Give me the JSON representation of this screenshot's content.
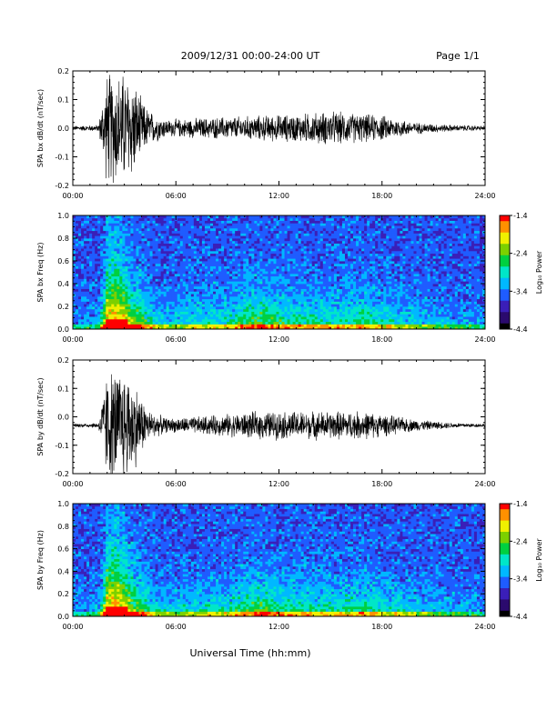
{
  "header": {
    "title": "2009/12/31  00:00-24:00 UT",
    "page": "Page 1/1"
  },
  "footer": {
    "xlabel": "Universal Time (hh:mm)"
  },
  "colorbar": {
    "ticks": [
      "-1.4",
      "-2.4",
      "-3.4",
      "-4.4"
    ],
    "label": "Log₁₀ Power",
    "colors": [
      "#000000",
      "#2b0a6e",
      "#3a1fb8",
      "#1f5cff",
      "#00b8ff",
      "#00e6c8",
      "#00d040",
      "#7cd000",
      "#f0f000",
      "#ff9000",
      "#ff0000"
    ]
  },
  "chart_data": [
    {
      "type": "line",
      "title": "",
      "xlabel": "",
      "ylabel": "SPA bx dB/dt (nT/sec)",
      "xlim": [
        0,
        24
      ],
      "ylim": [
        -0.2,
        0.2
      ],
      "xticklabels": [
        "00:00",
        "06:00",
        "12:00",
        "18:00",
        "24:00"
      ],
      "yticklabels": [
        "0.2",
        "0.1",
        "0.0",
        "-0.1",
        "-0.2"
      ],
      "baseline": 0.0,
      "envelope": {
        "hours": [
          0,
          1.5,
          2.0,
          2.5,
          3.0,
          3.5,
          4.0,
          4.5,
          5.5,
          7,
          9,
          11,
          13,
          15,
          17,
          18,
          20,
          22,
          24
        ],
        "amplitude": [
          0.008,
          0.012,
          0.2,
          0.2,
          0.2,
          0.18,
          0.1,
          0.06,
          0.03,
          0.035,
          0.04,
          0.045,
          0.05,
          0.06,
          0.05,
          0.045,
          0.02,
          0.012,
          0.008
        ]
      }
    },
    {
      "type": "heatmap",
      "title": "",
      "xlabel": "",
      "ylabel": "SPA bx Freq (Hz)",
      "zlabel": "Log₁₀ Power",
      "xlim": [
        0,
        24
      ],
      "ylim": [
        0,
        1.0
      ],
      "zlim": [
        -4.4,
        -1.4
      ],
      "xticklabels": [
        "00:00",
        "06:00",
        "12:00",
        "18:00",
        "24:00"
      ],
      "yticklabels": [
        "1.0",
        "0.8",
        "0.6",
        "0.4",
        "0.2",
        "0.0"
      ],
      "activity": {
        "hours": [
          0,
          1.5,
          2.0,
          2.5,
          3.0,
          3.5,
          4.0,
          5.0,
          7,
          9,
          10,
          11,
          12,
          14,
          16,
          17,
          18,
          20,
          22,
          24
        ],
        "level": [
          0.1,
          0.2,
          0.95,
          1.0,
          0.9,
          0.7,
          0.6,
          0.3,
          0.35,
          0.4,
          0.55,
          0.6,
          0.5,
          0.45,
          0.45,
          0.5,
          0.4,
          0.3,
          0.2,
          0.15
        ]
      }
    },
    {
      "type": "line",
      "title": "",
      "xlabel": "",
      "ylabel": "SPA by dB/dt (nT/sec)",
      "xlim": [
        0,
        24
      ],
      "ylim": [
        -0.2,
        0.2
      ],
      "xticklabels": [
        "00:00",
        "06:00",
        "12:00",
        "18:00",
        "24:00"
      ],
      "yticklabels": [
        "0.2",
        "0.1",
        "0.0",
        "-0.1",
        "-0.2"
      ],
      "baseline": -0.03,
      "envelope": {
        "hours": [
          0,
          1.5,
          2.0,
          2.5,
          3.0,
          3.5,
          4.0,
          4.5,
          5.5,
          7,
          9,
          11,
          13,
          15,
          17,
          18,
          20,
          22,
          24
        ],
        "amplitude": [
          0.006,
          0.01,
          0.2,
          0.2,
          0.2,
          0.17,
          0.1,
          0.05,
          0.025,
          0.03,
          0.04,
          0.05,
          0.05,
          0.05,
          0.05,
          0.04,
          0.02,
          0.01,
          0.006
        ]
      }
    },
    {
      "type": "heatmap",
      "title": "",
      "xlabel": "",
      "ylabel": "SPA by Freq (Hz)",
      "zlabel": "Log₁₀ Power",
      "xlim": [
        0,
        24
      ],
      "ylim": [
        0,
        1.0
      ],
      "zlim": [
        -4.4,
        -1.4
      ],
      "xticklabels": [
        "00:00",
        "06:00",
        "12:00",
        "18:00",
        "24:00"
      ],
      "yticklabels": [
        "1.0",
        "0.8",
        "0.6",
        "0.4",
        "0.2",
        "0.0"
      ],
      "activity": {
        "hours": [
          0,
          1.5,
          2.0,
          2.5,
          3.0,
          3.5,
          4.0,
          5.0,
          7,
          9,
          10,
          11,
          12,
          14,
          16,
          17,
          18,
          20,
          22,
          24
        ],
        "level": [
          0.1,
          0.2,
          0.95,
          1.0,
          0.9,
          0.7,
          0.6,
          0.3,
          0.35,
          0.4,
          0.55,
          0.6,
          0.5,
          0.45,
          0.45,
          0.5,
          0.4,
          0.3,
          0.2,
          0.15
        ]
      }
    }
  ]
}
